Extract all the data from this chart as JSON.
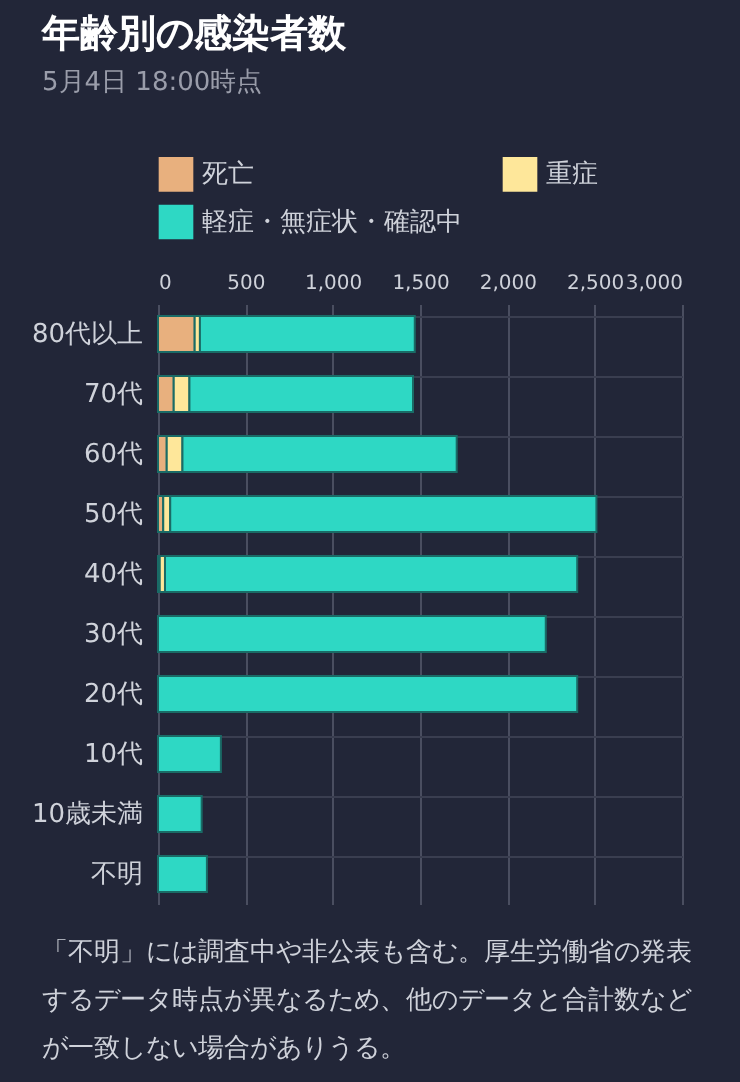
{
  "chart_data": {
    "type": "bar",
    "orientation": "horizontal",
    "stacked": true,
    "title": "年齢別の感染者数",
    "subtitle": "5月4日 18:00時点",
    "categories": [
      "80代以上",
      "70代",
      "60代",
      "50代",
      "40代",
      "30代",
      "20代",
      "10代",
      "10歳未満",
      "不明"
    ],
    "series": [
      {
        "name": "死亡",
        "color": "#e8b07e",
        "values": [
          210,
          90,
          50,
          30,
          10,
          0,
          0,
          0,
          0,
          0
        ]
      },
      {
        "name": "重症",
        "color": "#fee79a",
        "values": [
          30,
          90,
          90,
          40,
          30,
          0,
          0,
          0,
          0,
          0
        ]
      },
      {
        "name": "軽症・無症状・確認中",
        "color": "#2ed8c4",
        "values": [
          1230,
          1280,
          1570,
          2440,
          2360,
          2220,
          2400,
          360,
          250,
          280
        ]
      }
    ],
    "xlim": [
      0,
      3000
    ],
    "xticks": [
      0,
      500,
      {
        "value": 1000,
        "label": "1,000"
      },
      {
        "value": 1500,
        "label": "1,500"
      },
      {
        "value": 2000,
        "label": "2,000"
      },
      {
        "value": 2500,
        "label": "2,500"
      },
      {
        "value": 3000,
        "label": "3,000"
      }
    ],
    "grid": true,
    "legend": "top",
    "annotations": [
      "「不明」には調査中や非公表も含む。厚生労働省の発表するデータ時点が異なるため、他のデータと合計数などが一致しない場合がありうる。"
    ]
  }
}
